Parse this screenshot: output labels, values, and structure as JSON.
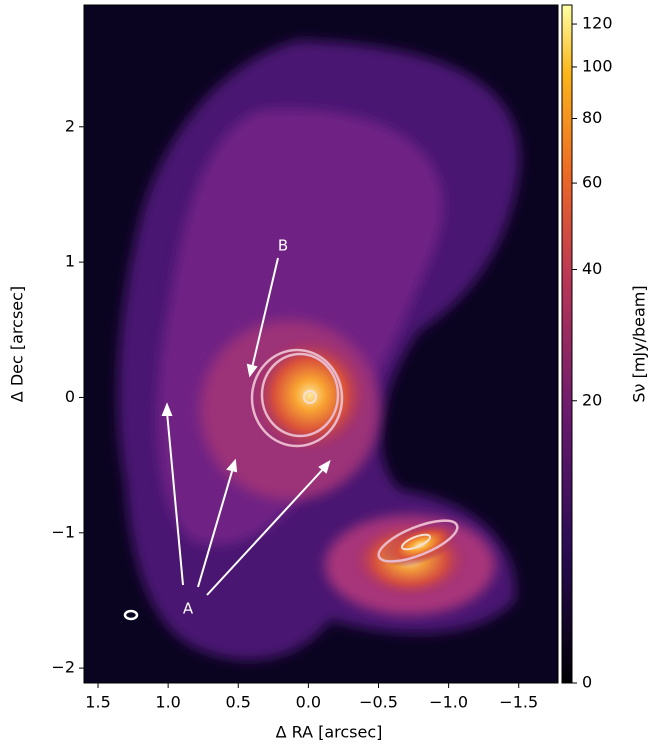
{
  "chart_data": {
    "type": "image",
    "xlabel": "Δ RA [arcsec]",
    "ylabel": "Δ Dec [arcsec]",
    "xlim": [
      1.6,
      -1.78
    ],
    "ylim": [
      -2.11,
      2.9
    ],
    "xticks": [
      1.5,
      {
        "value": 1.0,
        "label": "1.0"
      },
      0.5,
      {
        "value": 0.0,
        "label": "0.0"
      },
      {
        "value": -0.5,
        "label": "−0.5"
      },
      {
        "value": -1.0,
        "label": "−1.0"
      },
      {
        "value": -1.5,
        "label": "−1.5"
      }
    ],
    "yticks": [
      {
        "value": -2,
        "label": "−2"
      },
      {
        "value": -1,
        "label": "−1"
      },
      0,
      1,
      2
    ],
    "colorbar": {
      "label": "Sν [mJy/beam]",
      "lim": [
        0,
        130
      ],
      "ticks": [
        0,
        20,
        40,
        60,
        80,
        100,
        120
      ],
      "scale": "log"
    },
    "annotations": [
      "A",
      "B"
    ]
  }
}
